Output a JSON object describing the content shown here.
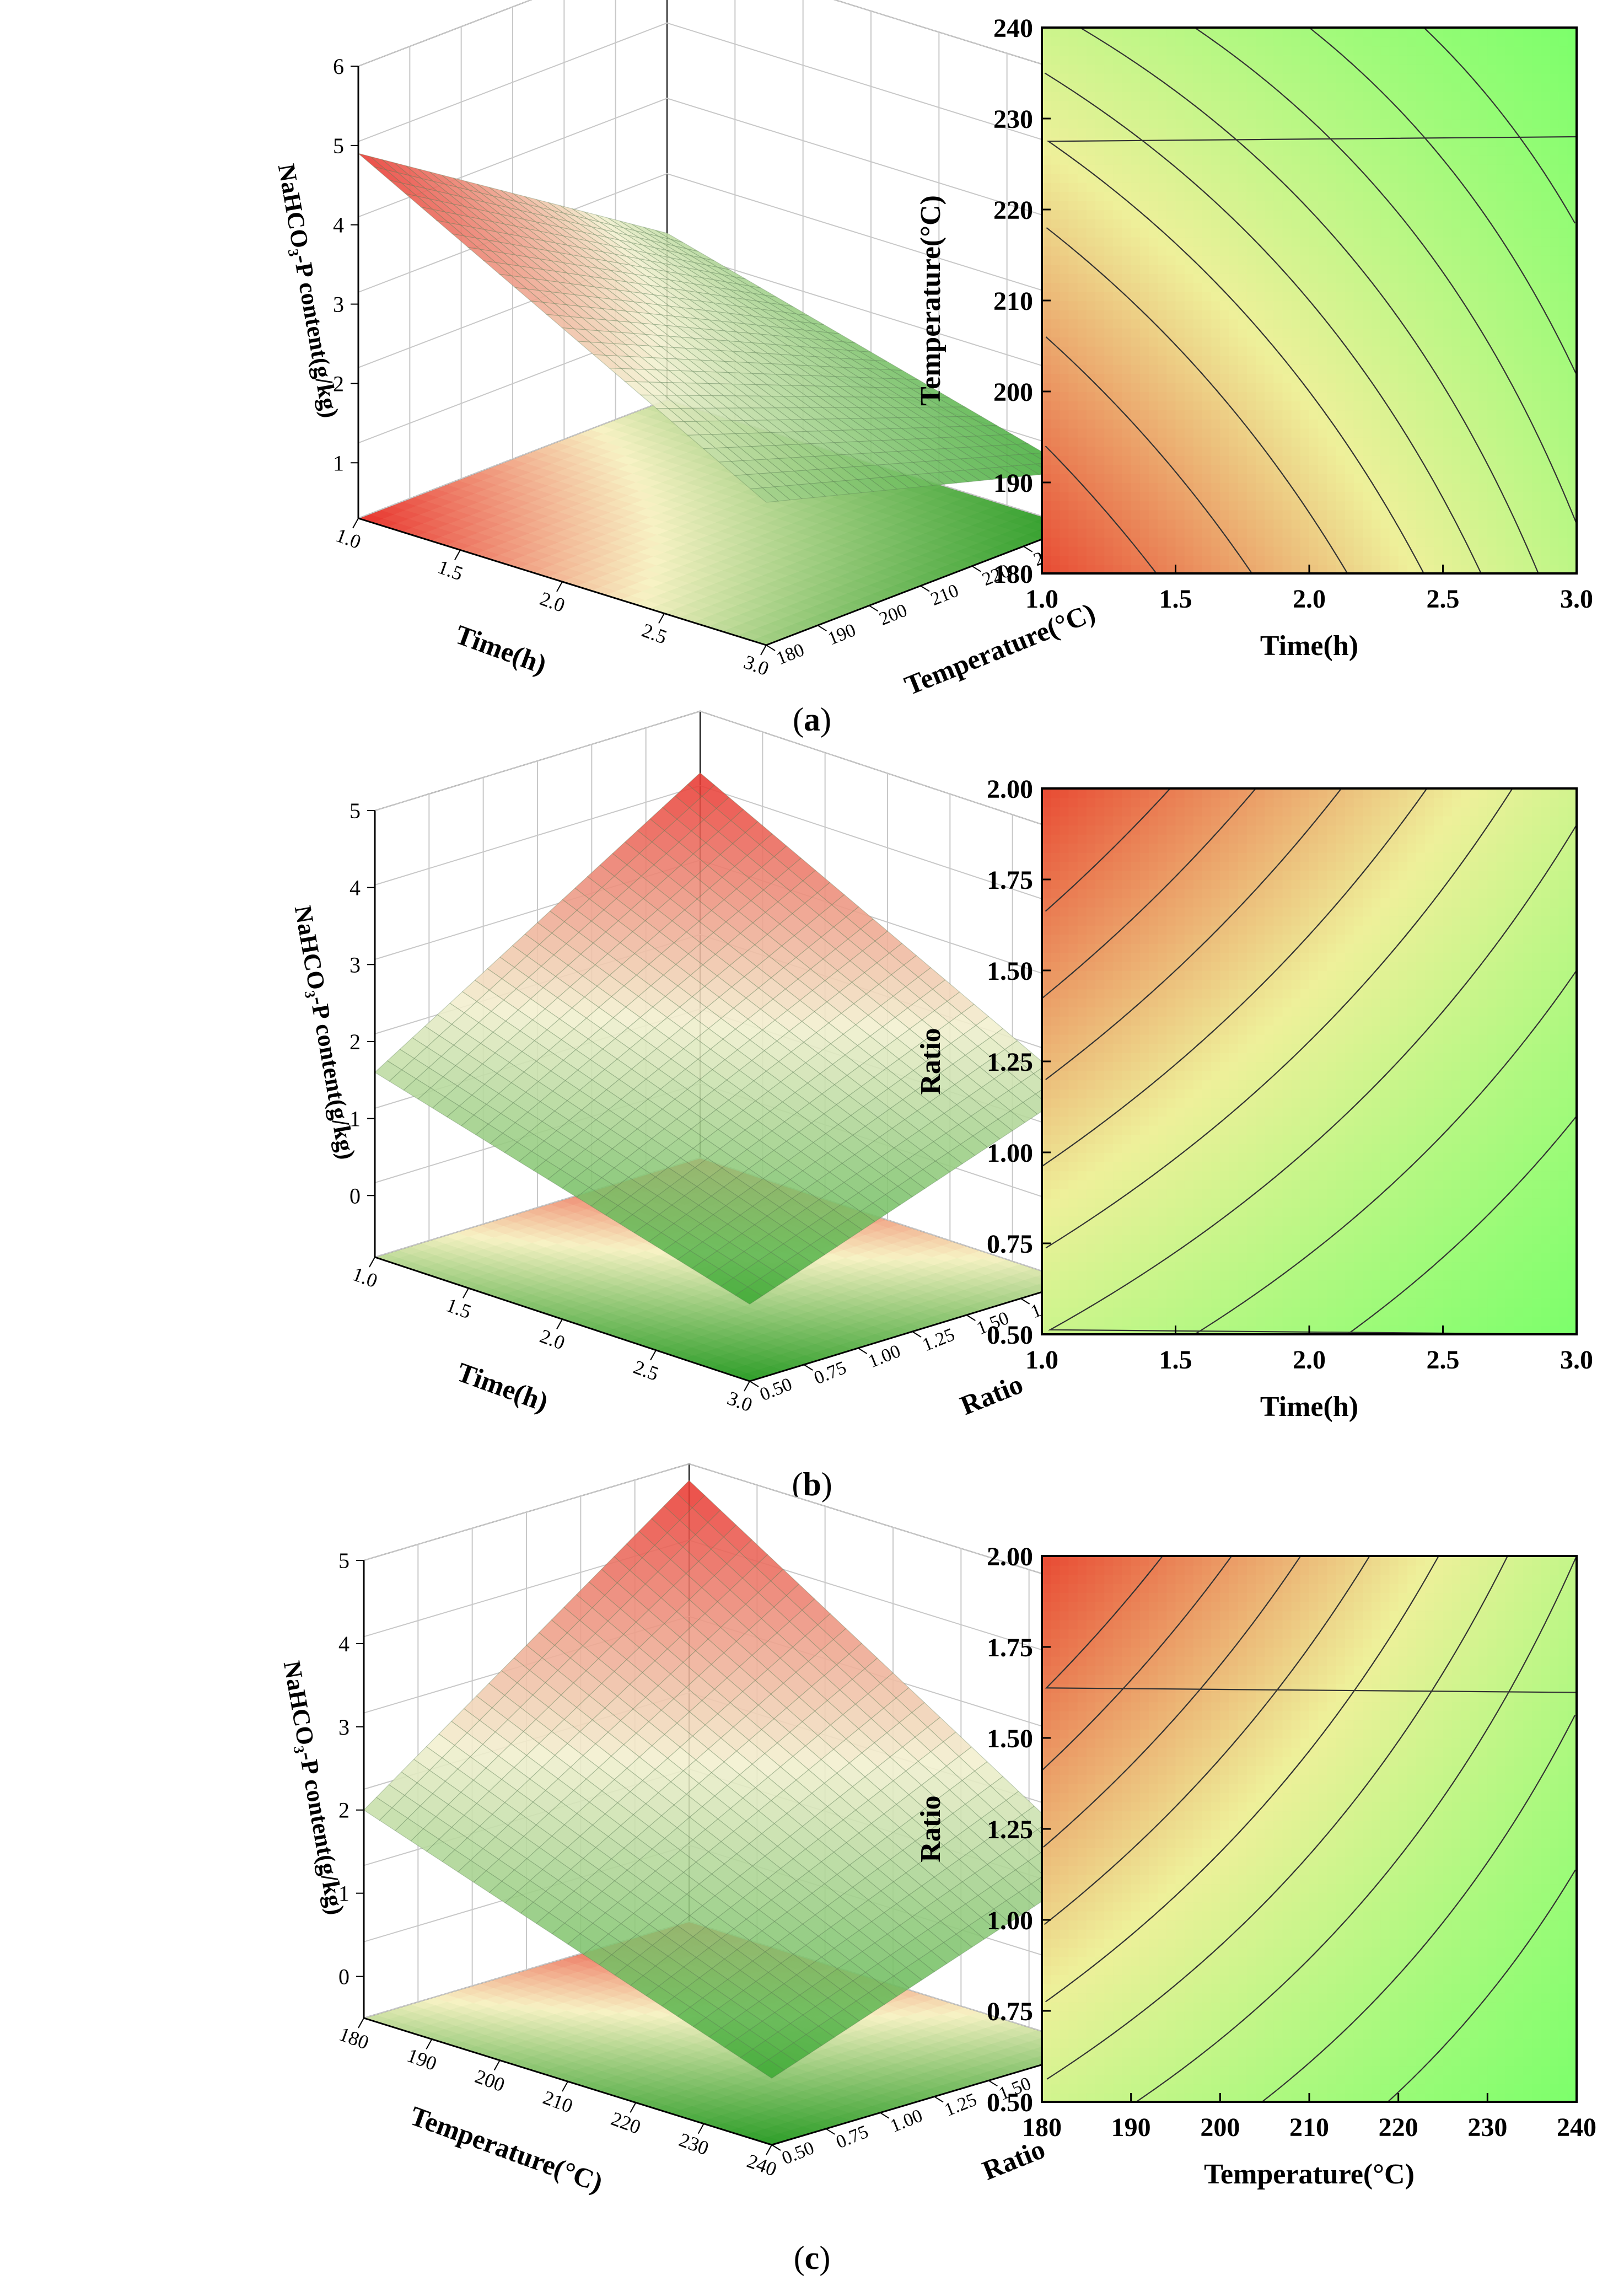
{
  "panels": [
    {
      "label_open": "(",
      "label": "a",
      "label_close": ")",
      "chart_data": [
        {
          "type": "surface3d",
          "xlabel": "Time(h)",
          "ylabel": "Temperature(°C)",
          "zlabel": "NaHCO₃-P content(g/kg)",
          "x_ticks": [
            "1.0",
            "1.5",
            "2.0",
            "2.5",
            "3.0"
          ],
          "y_ticks": [
            "180",
            "190",
            "200",
            "210",
            "220",
            "230",
            "240"
          ],
          "z_ticks": [
            "1",
            "2",
            "3",
            "4",
            "5",
            "6"
          ],
          "xlim": [
            1.0,
            3.0
          ],
          "ylim": [
            180,
            240
          ],
          "zlim": [
            0.3,
            6
          ],
          "z_corners": {
            "x0y0": 4.9,
            "x1y0": 2.1,
            "x0y1": 2.4,
            "x1y1": 1.0
          },
          "floor_z": 0.3
        },
        {
          "type": "contour",
          "xlabel": "Time(h)",
          "ylabel": "Temperature(°C)",
          "x_ticks": [
            "1.0",
            "1.5",
            "2.0",
            "2.5",
            "3.0"
          ],
          "y_ticks": [
            "180",
            "190",
            "200",
            "210",
            "220",
            "230",
            "240"
          ],
          "xlim": [
            1.0,
            3.0
          ],
          "ylim": [
            180,
            240
          ],
          "z_corners": {
            "x0y0": 4.9,
            "x1y0": 2.1,
            "x0y1": 2.4,
            "x1y1": 1.0
          },
          "levels": [
            1.4,
            1.7,
            2.0,
            2.3,
            2.6,
            2.9,
            3.3,
            3.8,
            4.3
          ]
        }
      ]
    },
    {
      "label_open": "(",
      "label": "b",
      "label_close": ")",
      "chart_data": [
        {
          "type": "surface3d",
          "xlabel": "Time(h)",
          "ylabel": "Ratio",
          "zlabel": "NaHCO₃-P content(g/kg)",
          "x_ticks": [
            "1.0",
            "1.5",
            "2.0",
            "2.5",
            "3.0"
          ],
          "y_ticks": [
            "0.50",
            "0.75",
            "1.00",
            "1.25",
            "1.50",
            "1.75",
            "2.00"
          ],
          "z_ticks": [
            "0",
            "1",
            "2",
            "3",
            "4",
            "5"
          ],
          "xlim": [
            1.0,
            3.0
          ],
          "ylim": [
            0.5,
            2.0
          ],
          "zlim": [
            -0.8,
            5
          ],
          "z_corners": {
            "x0y0": 1.6,
            "x1y0": 0.2,
            "x0y1": 4.2,
            "x1y1": 1.7
          },
          "floor_z": -0.8
        },
        {
          "type": "contour",
          "xlabel": "Time(h)",
          "ylabel": "Ratio",
          "x_ticks": [
            "1.0",
            "1.5",
            "2.0",
            "2.5",
            "3.0"
          ],
          "y_ticks": [
            "0.50",
            "0.75",
            "1.00",
            "1.25",
            "1.50",
            "1.75",
            "2.00"
          ],
          "xlim": [
            1.0,
            3.0
          ],
          "ylim": [
            0.5,
            2.0
          ],
          "z_corners": {
            "x0y0": 1.6,
            "x1y0": 0.2,
            "x0y1": 4.2,
            "x1y1": 1.7
          },
          "levels": [
            0.8,
            1.2,
            1.6,
            2.0,
            2.4,
            2.8,
            3.2,
            3.6
          ]
        }
      ]
    },
    {
      "label_open": "(",
      "label": "c",
      "label_close": ")",
      "chart_data": [
        {
          "type": "surface3d",
          "xlabel": "Temperature(°C)",
          "ylabel": "Ratio",
          "zlabel": "NaHCO₃-P content(g/kg)",
          "x_ticks": [
            "180",
            "190",
            "200",
            "210",
            "220",
            "230",
            "240"
          ],
          "y_ticks": [
            "0.50",
            "0.75",
            "1.00",
            "1.25",
            "1.50",
            "1.75",
            "2.00"
          ],
          "z_ticks": [
            "0",
            "1",
            "2",
            "3",
            "4",
            "5"
          ],
          "xlim": [
            180,
            240
          ],
          "ylim": [
            0.5,
            2.0
          ],
          "zlim": [
            -0.5,
            5
          ],
          "z_corners": {
            "x0y0": 2.0,
            "x1y0": 0.3,
            "x0y1": 4.8,
            "x1y1": 1.7
          },
          "floor_z": -0.5
        },
        {
          "type": "contour",
          "xlabel": "Temperature(°C)",
          "ylabel": "Ratio",
          "x_ticks": [
            "180",
            "190",
            "200",
            "210",
            "220",
            "230",
            "240"
          ],
          "y_ticks": [
            "0.50",
            "0.75",
            "1.00",
            "1.25",
            "1.50",
            "1.75",
            "2.00"
          ],
          "xlim": [
            180,
            240
          ],
          "ylim": [
            0.5,
            2.0
          ],
          "z_corners": {
            "x0y0": 2.0,
            "x1y0": 0.3,
            "x0y1": 4.8,
            "x1y1": 1.7
          },
          "levels": [
            0.9,
            1.3,
            1.7,
            2.1,
            2.5,
            2.9,
            3.3,
            3.7,
            4.1
          ]
        }
      ]
    }
  ],
  "colors": {
    "low": "#3fb02f",
    "mid": "#eef2a0",
    "high": "#e8322c",
    "contour_low": "#7cff6b",
    "contour_mid": "#eef09a",
    "contour_high": "#e84a33",
    "axis": "#000000",
    "grid": "#c8c8c8",
    "contour_line": "#333333"
  }
}
